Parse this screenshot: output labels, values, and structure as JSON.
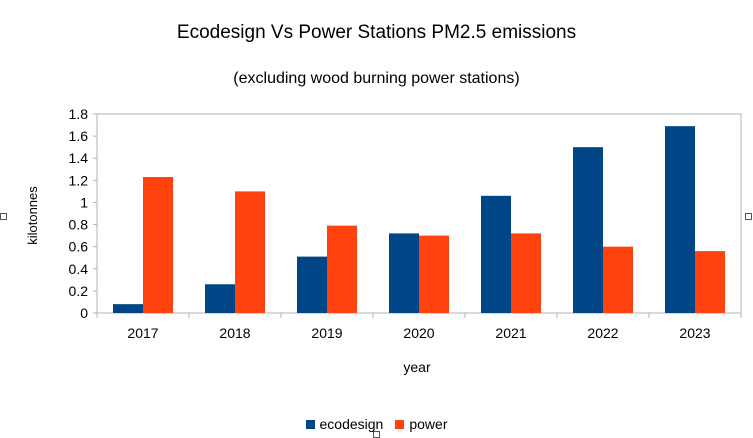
{
  "chart_data": {
    "type": "bar",
    "title": "Ecodesign Vs Power Stations PM2.5 emissions",
    "subtitle": "(excluding wood burning power stations)",
    "xlabel": "year",
    "ylabel": "kilotonnes",
    "ylim": [
      0,
      1.8
    ],
    "yticks": [
      "0",
      "0.2",
      "0.4",
      "0.6",
      "0.8",
      "1",
      "1.2",
      "1.4",
      "1.6",
      "1.8"
    ],
    "categories": [
      "2017",
      "2018",
      "2019",
      "2020",
      "2021",
      "2022",
      "2023"
    ],
    "series": [
      {
        "name": "ecodesign",
        "color": "#004586",
        "values": [
          0.08,
          0.26,
          0.51,
          0.72,
          1.06,
          1.5,
          1.69
        ]
      },
      {
        "name": "power",
        "color": "#ff420e",
        "values": [
          1.23,
          1.1,
          0.79,
          0.7,
          0.72,
          0.6,
          0.56
        ]
      }
    ],
    "grid": false,
    "legend": "bottom"
  }
}
